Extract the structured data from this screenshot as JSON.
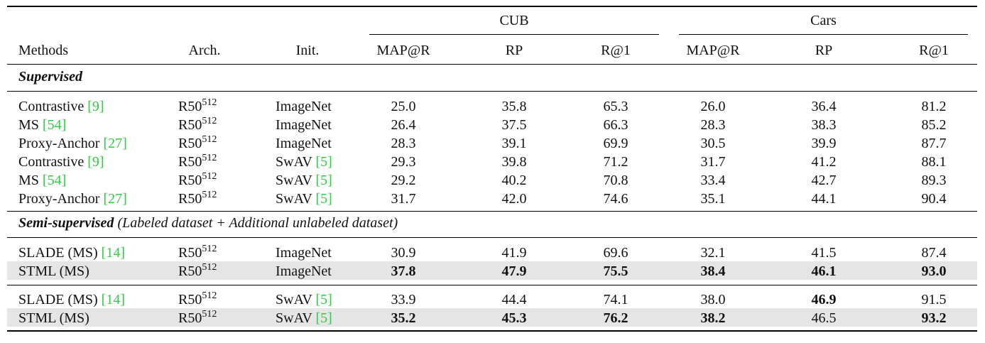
{
  "groups": [
    "CUB",
    "Cars"
  ],
  "headers": {
    "methods": "Methods",
    "arch": "Arch.",
    "init": "Init.",
    "metrics": [
      "MAP@R",
      "RP",
      "R@1",
      "MAP@R",
      "RP",
      "R@1"
    ]
  },
  "sections": [
    {
      "title_bold": "Supervised",
      "title_rest": "",
      "blocks": [
        [
          {
            "method": "Contrastive ",
            "cite": "[9]",
            "arch": "R50",
            "arch_sup": "512",
            "init": "ImageNet",
            "init_cite": "",
            "values": [
              "25.0",
              "35.8",
              "65.3",
              "26.0",
              "36.4",
              "81.2"
            ],
            "bold": [
              false,
              false,
              false,
              false,
              false,
              false
            ],
            "highlight": false
          },
          {
            "method": "MS ",
            "cite": "[54]",
            "arch": "R50",
            "arch_sup": "512",
            "init": "ImageNet",
            "init_cite": "",
            "values": [
              "26.4",
              "37.5",
              "66.3",
              "28.3",
              "38.3",
              "85.2"
            ],
            "bold": [
              false,
              false,
              false,
              false,
              false,
              false
            ],
            "highlight": false
          },
          {
            "method": "Proxy-Anchor ",
            "cite": "[27]",
            "arch": "R50",
            "arch_sup": "512",
            "init": "ImageNet",
            "init_cite": "",
            "values": [
              "28.3",
              "39.1",
              "69.9",
              "30.5",
              "39.9",
              "87.7"
            ],
            "bold": [
              false,
              false,
              false,
              false,
              false,
              false
            ],
            "highlight": false
          },
          {
            "method": "Contrastive ",
            "cite": "[9]",
            "arch": "R50",
            "arch_sup": "512",
            "init": "SwAV ",
            "init_cite": "[5]",
            "values": [
              "29.3",
              "39.8",
              "71.2",
              "31.7",
              "41.2",
              "88.1"
            ],
            "bold": [
              false,
              false,
              false,
              false,
              false,
              false
            ],
            "highlight": false
          },
          {
            "method": "MS ",
            "cite": "[54]",
            "arch": "R50",
            "arch_sup": "512",
            "init": "SwAV ",
            "init_cite": "[5]",
            "values": [
              "29.2",
              "40.2",
              "70.8",
              "33.4",
              "42.7",
              "89.3"
            ],
            "bold": [
              false,
              false,
              false,
              false,
              false,
              false
            ],
            "highlight": false
          },
          {
            "method": "Proxy-Anchor ",
            "cite": "[27]",
            "arch": "R50",
            "arch_sup": "512",
            "init": "SwAV ",
            "init_cite": "[5]",
            "values": [
              "31.7",
              "42.0",
              "74.6",
              "35.1",
              "44.1",
              "90.4"
            ],
            "bold": [
              false,
              false,
              false,
              false,
              false,
              false
            ],
            "highlight": false
          }
        ]
      ]
    },
    {
      "title_bold": "Semi-supervised",
      "title_rest": " (Labeled dataset + Additional unlabeled dataset)",
      "blocks": [
        [
          {
            "method": "SLADE (MS) ",
            "cite": "[14]",
            "arch": "R50",
            "arch_sup": "512",
            "init": "ImageNet",
            "init_cite": "",
            "values": [
              "30.9",
              "41.9",
              "69.6",
              "32.1",
              "41.5",
              "87.4"
            ],
            "bold": [
              false,
              false,
              false,
              false,
              false,
              false
            ],
            "highlight": false
          },
          {
            "method": "STML (MS)",
            "cite": "",
            "arch": "R50",
            "arch_sup": "512",
            "init": "ImageNet",
            "init_cite": "",
            "values": [
              "37.8",
              "47.9",
              "75.5",
              "38.4",
              "46.1",
              "93.0"
            ],
            "bold": [
              true,
              true,
              true,
              true,
              true,
              true
            ],
            "highlight": true
          }
        ],
        [
          {
            "method": "SLADE (MS) ",
            "cite": "[14]",
            "arch": "R50",
            "arch_sup": "512",
            "init": "SwAV ",
            "init_cite": "[5]",
            "values": [
              "33.9",
              "44.4",
              "74.1",
              "38.0",
              "46.9",
              "91.5"
            ],
            "bold": [
              false,
              false,
              false,
              false,
              true,
              false
            ],
            "highlight": false
          },
          {
            "method": "STML (MS)",
            "cite": "",
            "arch": "R50",
            "arch_sup": "512",
            "init": "SwAV ",
            "init_cite": "[5]",
            "values": [
              "35.2",
              "45.3",
              "76.2",
              "38.2",
              "46.5",
              "93.2"
            ],
            "bold": [
              true,
              true,
              true,
              true,
              false,
              true
            ],
            "highlight": true
          }
        ]
      ]
    }
  ]
}
